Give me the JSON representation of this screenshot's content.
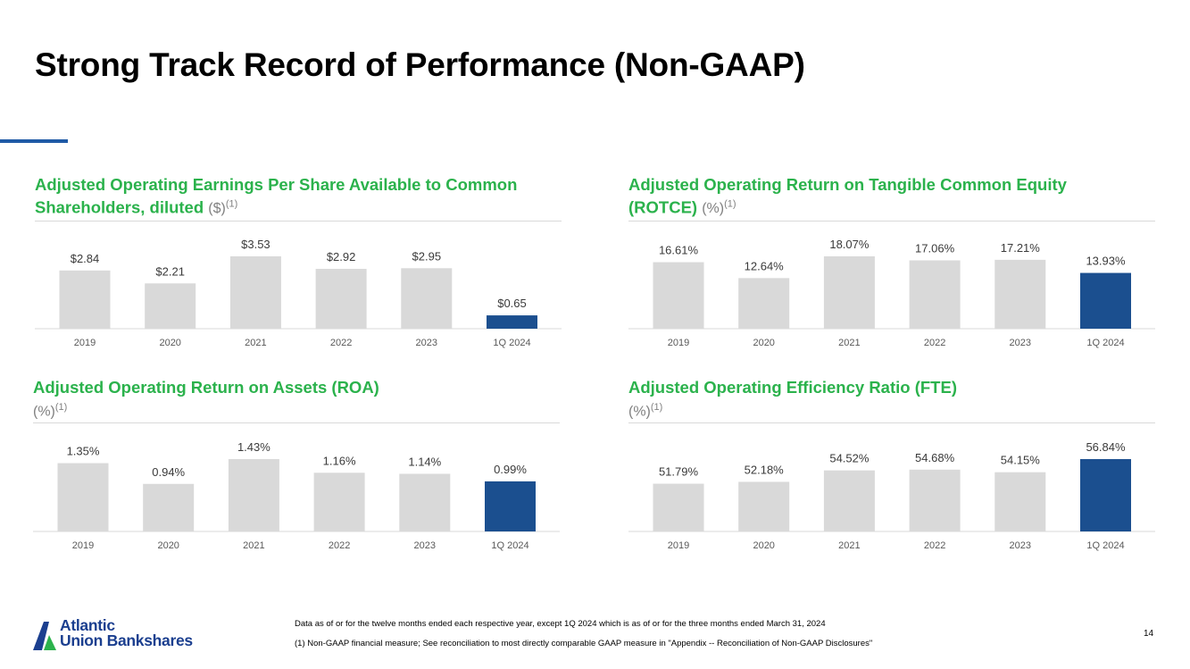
{
  "slide": {
    "title": "Strong Track Record of Performance (Non-GAAP)",
    "page_number": "14",
    "footnote_1": "Data as of or for the twelve months ended each respective year, except 1Q 2024 which is as of or for the three months ended March 31, 2024",
    "footnote_2": "(1) Non-GAAP financial measure; See reconciliation to most directly comparable GAAP measure in \"Appendix -- Reconciliation of Non-GAAP Disclosures\"",
    "logo": {
      "line1": "Atlantic",
      "line2": "Union Bankshares"
    },
    "colors": {
      "accent_green": "#2bb24c",
      "bar_gray": "#d9d9d9",
      "bar_highlight": "#1b4f8f",
      "logo_blue": "#1b3f8f",
      "accent_rule": "#1f5aa6"
    }
  },
  "chart_data": [
    {
      "type": "bar",
      "title": "Adjusted Operating Earnings Per Share Available to Common Shareholders, diluted",
      "unit": "($)",
      "footnote_marker": "(1)",
      "categories": [
        "2019",
        "2020",
        "2021",
        "2022",
        "2023",
        "1Q 2024"
      ],
      "values": [
        2.84,
        2.21,
        3.53,
        2.92,
        2.95,
        0.65
      ],
      "labels": [
        "$2.84",
        "$2.21",
        "$3.53",
        "$2.92",
        "$2.95",
        "$0.65"
      ],
      "highlight_index": 5,
      "ylim": [
        0,
        3.53
      ]
    },
    {
      "type": "bar",
      "title": "Adjusted Operating Return on Tangible Common Equity (ROTCE)",
      "unit": "(%)",
      "footnote_marker": "(1)",
      "categories": [
        "2019",
        "2020",
        "2021",
        "2022",
        "2023",
        "1Q 2024"
      ],
      "values": [
        16.61,
        12.64,
        18.07,
        17.06,
        17.21,
        13.93
      ],
      "labels": [
        "16.61%",
        "12.64%",
        "18.07%",
        "17.06%",
        "17.21%",
        "13.93%"
      ],
      "highlight_index": 5,
      "ylim": [
        0,
        18.07
      ]
    },
    {
      "type": "bar",
      "title": "Adjusted Operating Return on Assets (ROA)",
      "unit": "(%)",
      "footnote_marker": "(1)",
      "categories": [
        "2019",
        "2020",
        "2021",
        "2022",
        "2023",
        "1Q 2024"
      ],
      "values": [
        1.35,
        0.94,
        1.43,
        1.16,
        1.14,
        0.99
      ],
      "labels": [
        "1.35%",
        "0.94%",
        "1.43%",
        "1.16%",
        "1.14%",
        "0.99%"
      ],
      "highlight_index": 5,
      "ylim": [
        0,
        1.43
      ]
    },
    {
      "type": "bar",
      "title": "Adjusted Operating Efficiency Ratio (FTE)",
      "unit": "(%)",
      "footnote_marker": "(1)",
      "categories": [
        "2019",
        "2020",
        "2021",
        "2022",
        "2023",
        "1Q 2024"
      ],
      "values": [
        51.79,
        52.18,
        54.52,
        54.68,
        54.15,
        56.84
      ],
      "labels": [
        "51.79%",
        "52.18%",
        "54.52%",
        "54.68%",
        "54.15%",
        "56.84%"
      ],
      "highlight_index": 5,
      "ylim": [
        42,
        56.84
      ]
    }
  ]
}
